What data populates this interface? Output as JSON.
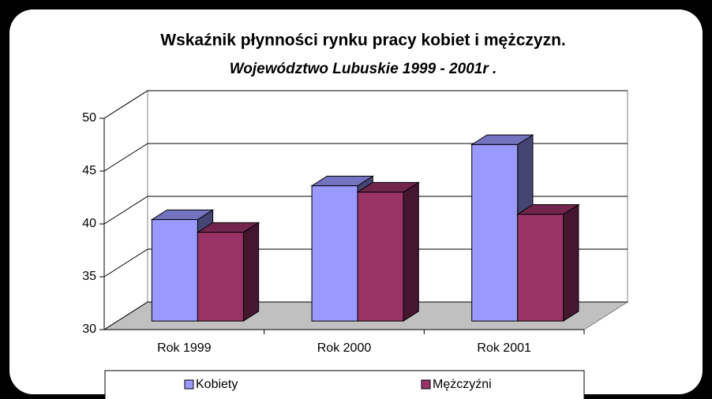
{
  "chart_data": {
    "type": "bar3d",
    "title": "Wskaźnik płynności rynku pracy kobiet i mężczyzn.",
    "subtitle": "Województwo Lubuskie 1999 - 2001r .",
    "categories": [
      "Rok 1999",
      "Rok 2000",
      "Rok 2001"
    ],
    "series": [
      {
        "name": "Kobiety",
        "color": "#9999ff",
        "values": [
          39.6,
          42.8,
          46.7
        ]
      },
      {
        "name": "Mężczyźni",
        "color": "#993366",
        "values": [
          38.4,
          42.2,
          40.1
        ]
      }
    ],
    "ylim": [
      30,
      50
    ],
    "yticks": [
      30,
      35,
      40,
      45,
      50
    ],
    "grid": true,
    "legend": "bottom"
  }
}
